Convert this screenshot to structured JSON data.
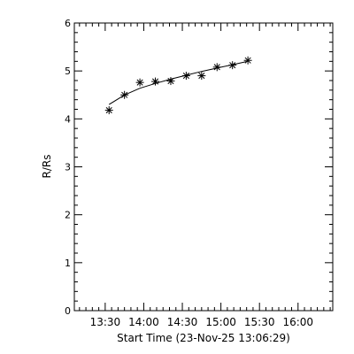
{
  "chart_data": {
    "type": "scatter",
    "title": "",
    "xlabel": "Start Time (23-Nov-25 13:06:29)",
    "ylabel": "R/Rs",
    "xlim": [
      "13:06",
      "16:27"
    ],
    "ylim": [
      0,
      6
    ],
    "x_ticks": [
      "13:30",
      "14:00",
      "14:30",
      "15:00",
      "15:30",
      "16:00"
    ],
    "y_ticks": [
      "0",
      "1",
      "2",
      "3",
      "4",
      "5",
      "6"
    ],
    "grid": false,
    "legend": "none",
    "series": [
      {
        "marker": "asterisk",
        "x": [
          "13:33",
          "13:45",
          "13:57",
          "14:09",
          "14:21",
          "14:33",
          "14:45",
          "14:57",
          "15:09",
          "15:21"
        ],
        "y": [
          4.18,
          4.5,
          4.76,
          4.78,
          4.79,
          4.9,
          4.9,
          5.08,
          5.12,
          5.22
        ]
      }
    ],
    "fit": {
      "type": "line",
      "x": [
        "13:33",
        "13:45",
        "13:57",
        "14:09",
        "14:21",
        "14:33",
        "14:45",
        "14:57",
        "15:09",
        "15:21"
      ],
      "y": [
        4.3,
        4.5,
        4.64,
        4.74,
        4.83,
        4.91,
        4.99,
        5.06,
        5.13,
        5.2
      ]
    }
  }
}
